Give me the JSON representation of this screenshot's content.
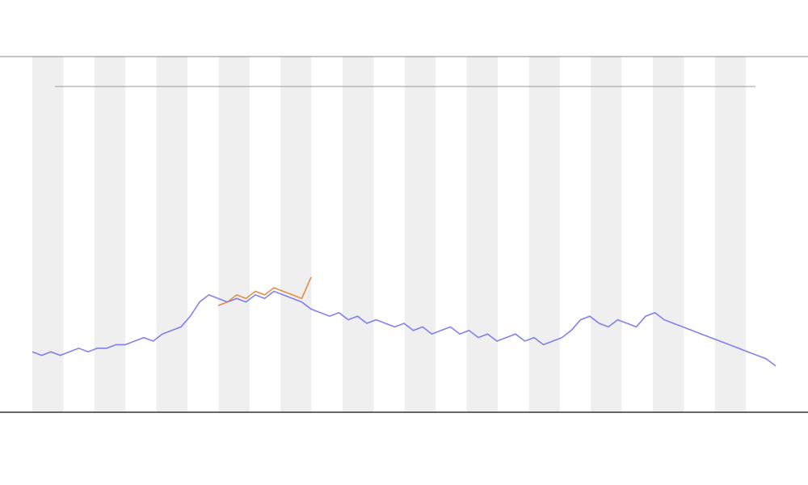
{
  "chart_data": {
    "type": "line",
    "ylim": [
      0,
      100
    ],
    "series": [
      {
        "color": "#6b6bef",
        "values": [
          17,
          16,
          17,
          16,
          17,
          18,
          17,
          18,
          18,
          19,
          19,
          20,
          21,
          20,
          22,
          23,
          24,
          27,
          31,
          33,
          32,
          31,
          32,
          31,
          33,
          32,
          34,
          33,
          32,
          31,
          29,
          28,
          27,
          28,
          26,
          27,
          25,
          26,
          25,
          24,
          25,
          23,
          24,
          22,
          23,
          24,
          22,
          23,
          21,
          22,
          20,
          21,
          22,
          20,
          21,
          19,
          20,
          21,
          23,
          26,
          27,
          25,
          24,
          26,
          25,
          24,
          27,
          28,
          26,
          25,
          24,
          23,
          22,
          21,
          20,
          19,
          18,
          17,
          16,
          15,
          13
        ]
      },
      {
        "color": "#e07a2e",
        "values": [
          null,
          null,
          null,
          null,
          null,
          null,
          null,
          null,
          null,
          null,
          null,
          null,
          null,
          null,
          null,
          null,
          null,
          null,
          null,
          null,
          30,
          31,
          33,
          32,
          34,
          33,
          35,
          34,
          33,
          32,
          38,
          null,
          null,
          null,
          null,
          null,
          null,
          null,
          null,
          null,
          null,
          null,
          null,
          null,
          null,
          null,
          null,
          null,
          null,
          null,
          null,
          null,
          null,
          null,
          null,
          null,
          null,
          null,
          null,
          null,
          null,
          null,
          null,
          null,
          null,
          null,
          null,
          null,
          null,
          null,
          null,
          null,
          null,
          null,
          null,
          null,
          null,
          null,
          null,
          null,
          null
        ]
      }
    ]
  }
}
